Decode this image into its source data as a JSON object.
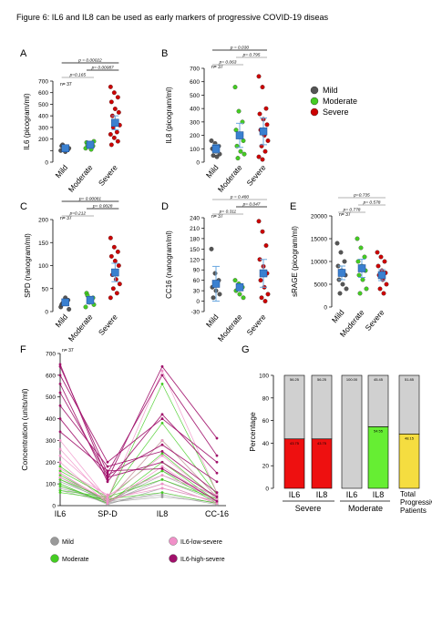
{
  "caption": "Figure 6: IL6 and IL8 can be used as early markers of progressive COVID-19 diseas",
  "colors": {
    "mild": "#555555",
    "moderate": "#44cc22",
    "severe": "#cc0000",
    "mean_marker": "#3a80d0",
    "err": "#6aa8e0",
    "sig_grey": "#999999",
    "il6_low": "#f090c8",
    "il6_high": "#a0106a",
    "bar_grey": "#d0d0d0",
    "bar_red": "#ee1010",
    "bar_green": "#66ee33",
    "bar_yellow": "#f5dd40",
    "orange_label": "#e0a020"
  },
  "legend_top": [
    {
      "label": "Mild",
      "color": "#555555"
    },
    {
      "label": "Moderate",
      "color": "#44cc22"
    },
    {
      "label": "Severe",
      "color": "#cc0000"
    }
  ],
  "panels": [
    {
      "letter": "A",
      "ylabel": "IL6 (picogram/ml)",
      "n": "n= 37",
      "ylim": [
        0,
        700
      ],
      "ticks": [
        0,
        100,
        200,
        300,
        400,
        500,
        600,
        700
      ],
      "tick_labels": [
        "0",
        "",
        "200",
        "300",
        "400",
        "500",
        "600",
        "700"
      ],
      "groups": [
        "Mild",
        "Moderate",
        "Severe"
      ],
      "means": [
        120,
        150,
        340
      ],
      "sem": [
        25,
        30,
        60
      ],
      "points": [
        [
          100,
          130,
          110,
          140,
          90,
          120,
          150,
          105
        ],
        [
          120,
          160,
          140,
          170,
          130,
          180,
          150,
          110
        ],
        [
          650,
          600,
          560,
          520,
          460,
          430,
          400,
          350,
          320,
          300,
          260,
          240,
          210,
          180,
          150
        ]
      ],
      "sig": [
        {
          "from": 0,
          "to": 2,
          "label": "p = 0.00022",
          "grey": false
        },
        {
          "from": 1,
          "to": 2,
          "label": "p= 0.00087",
          "grey": false
        },
        {
          "from": 0,
          "to": 1,
          "label": "p=0.165",
          "grey": true
        }
      ]
    },
    {
      "letter": "B",
      "ylabel": "IL8 (picogram/ml)",
      "n": "n= 37",
      "ylim": [
        0,
        700
      ],
      "ticks": [
        0,
        100,
        200,
        300,
        400,
        500,
        600,
        700
      ],
      "tick_labels": [
        "0",
        "100",
        "200",
        "300",
        "400",
        "500",
        "600",
        "700"
      ],
      "groups": [
        "Mild",
        "Moderate",
        "Severe"
      ],
      "means": [
        100,
        200,
        230
      ],
      "sem": [
        30,
        90,
        100
      ],
      "points": [
        [
          160,
          140,
          120,
          100,
          80,
          60,
          50,
          40
        ],
        [
          560,
          380,
          300,
          240,
          200,
          160,
          120,
          80,
          60,
          30
        ],
        [
          640,
          560,
          400,
          360,
          320,
          280,
          240,
          200,
          160,
          120,
          80,
          40,
          20
        ]
      ],
      "sig": [
        {
          "from": 0,
          "to": 2,
          "label": "p = 0.030",
          "grey": false
        },
        {
          "from": 1,
          "to": 2,
          "label": "p= 0.795",
          "grey": true
        },
        {
          "from": 0,
          "to": 1,
          "label": "p= 0.063",
          "grey": true
        }
      ]
    },
    {
      "letter": "C",
      "ylabel": "SPD (nanogram/ml)",
      "n": "n= 37",
      "ylim": [
        0,
        200
      ],
      "ticks": [
        0,
        50,
        100,
        150,
        200
      ],
      "tick_labels": [
        "0",
        "50",
        "100",
        "150",
        "200"
      ],
      "groups": [
        "Mild",
        "Moderate",
        "Severe"
      ],
      "means": [
        20,
        25,
        85
      ],
      "sem": [
        5,
        8,
        20
      ],
      "points": [
        [
          10,
          20,
          25,
          15,
          30,
          5,
          18
        ],
        [
          10,
          20,
          30,
          40,
          25,
          15,
          35
        ],
        [
          160,
          140,
          130,
          120,
          110,
          100,
          80,
          70,
          60,
          50,
          40,
          30
        ]
      ],
      "sig": [
        {
          "from": 0,
          "to": 2,
          "label": "p= 0.00081",
          "grey": false
        },
        {
          "from": 1,
          "to": 2,
          "label": "p= 0.0028",
          "grey": false
        },
        {
          "from": 0,
          "to": 1,
          "label": "p=0.212",
          "grey": true
        }
      ]
    },
    {
      "letter": "D",
      "ylabel": "CC16 (nanogram/ml)",
      "n": "n= 37",
      "ylim": [
        -30,
        240
      ],
      "ticks": [
        -30,
        0,
        30,
        60,
        90,
        120,
        150,
        180,
        210,
        240
      ],
      "tick_labels": [
        "-30",
        "0",
        "30",
        "60",
        "90",
        "120",
        "150",
        "180",
        "210",
        "240"
      ],
      "groups": [
        "Mild",
        "Moderate",
        "Severe"
      ],
      "means": [
        50,
        40,
        80
      ],
      "sem": [
        50,
        10,
        40
      ],
      "points": [
        [
          150,
          80,
          60,
          40,
          30,
          20,
          10
        ],
        [
          60,
          50,
          40,
          30,
          20,
          10
        ],
        [
          230,
          200,
          160,
          120,
          100,
          80,
          60,
          40,
          20,
          10,
          0
        ]
      ],
      "sig": [
        {
          "from": 0,
          "to": 2,
          "label": "p = 0.480",
          "grey": true
        },
        {
          "from": 1,
          "to": 2,
          "label": "p= 0.047",
          "grey": false
        },
        {
          "from": 0,
          "to": 1,
          "label": "p= 0.311",
          "grey": true
        }
      ]
    },
    {
      "letter": "E",
      "ylabel": "sRAGE (picogram/ml)",
      "n": "n= 37",
      "ylim": [
        0,
        20000
      ],
      "ticks": [
        0,
        5000,
        10000,
        15000,
        20000
      ],
      "tick_labels": [
        "0",
        "5000",
        "10000",
        "15000",
        "20000"
      ],
      "groups": [
        "Mild",
        "Moderate",
        "Severe"
      ],
      "means": [
        7500,
        8500,
        7000
      ],
      "sem": [
        1500,
        2000,
        1200
      ],
      "points": [
        [
          14000,
          12000,
          10000,
          9000,
          8000,
          7000,
          6000,
          5000,
          4000,
          3000
        ],
        [
          15000,
          13000,
          11000,
          10000,
          9000,
          8000,
          7000,
          6000,
          4000,
          3000
        ],
        [
          12000,
          11000,
          10000,
          9000,
          8000,
          7500,
          7000,
          6000,
          5000,
          4000,
          3000
        ]
      ],
      "sig": [
        {
          "from": 0,
          "to": 2,
          "label": "p=0.735",
          "grey": true
        },
        {
          "from": 1,
          "to": 2,
          "label": "p= 0.578",
          "grey": true
        },
        {
          "from": 0,
          "to": 1,
          "label": "p= 0.778",
          "grey": true
        }
      ]
    }
  ],
  "panel_f": {
    "letter": "F",
    "ylabel": "Concentration (units/ml)",
    "n": "n= 37",
    "ylim": [
      0,
      700
    ],
    "ticks": [
      0,
      100,
      200,
      300,
      400,
      500,
      600,
      700
    ],
    "categories": [
      "IL6",
      "SP-D",
      "IL8",
      "CC-16"
    ],
    "lines": [
      {
        "group": "high",
        "values": [
          650,
          120,
          640,
          310
        ]
      },
      {
        "group": "high",
        "values": [
          640,
          150,
          600,
          230
        ]
      },
      {
        "group": "high",
        "values": [
          600,
          200,
          400,
          200
        ]
      },
      {
        "group": "high",
        "values": [
          560,
          110,
          420,
          150
        ]
      },
      {
        "group": "high",
        "values": [
          520,
          140,
          280,
          110
        ]
      },
      {
        "group": "high",
        "values": [
          460,
          180,
          250,
          60
        ]
      },
      {
        "group": "high",
        "values": [
          400,
          130,
          200,
          40
        ]
      },
      {
        "group": "high",
        "values": [
          340,
          160,
          170,
          20
        ]
      },
      {
        "group": "low",
        "values": [
          300,
          30,
          620,
          60
        ]
      },
      {
        "group": "low",
        "values": [
          260,
          20,
          300,
          40
        ]
      },
      {
        "group": "low",
        "values": [
          230,
          40,
          230,
          30
        ]
      },
      {
        "group": "low",
        "values": [
          200,
          10,
          180,
          20
        ]
      },
      {
        "group": "low",
        "values": [
          170,
          50,
          140,
          50
        ]
      },
      {
        "group": "low",
        "values": [
          150,
          20,
          100,
          10
        ]
      },
      {
        "group": "low",
        "values": [
          130,
          30,
          80,
          20
        ]
      },
      {
        "group": "moderate",
        "values": [
          180,
          30,
          560,
          60
        ]
      },
      {
        "group": "moderate",
        "values": [
          160,
          40,
          380,
          50
        ]
      },
      {
        "group": "moderate",
        "values": [
          140,
          20,
          300,
          40
        ]
      },
      {
        "group": "moderate",
        "values": [
          120,
          30,
          240,
          30
        ]
      },
      {
        "group": "moderate",
        "values": [
          100,
          10,
          200,
          20
        ]
      },
      {
        "group": "moderate",
        "values": [
          90,
          20,
          160,
          10
        ]
      },
      {
        "group": "moderate",
        "values": [
          70,
          40,
          120,
          30
        ]
      },
      {
        "group": "moderate",
        "values": [
          60,
          30,
          60,
          10
        ]
      },
      {
        "group": "mild",
        "values": [
          150,
          10,
          160,
          40
        ]
      },
      {
        "group": "mild",
        "values": [
          130,
          20,
          140,
          30
        ]
      },
      {
        "group": "mild",
        "values": [
          120,
          15,
          120,
          20
        ]
      },
      {
        "group": "mild",
        "values": [
          110,
          25,
          100,
          10
        ]
      },
      {
        "group": "mild",
        "values": [
          100,
          5,
          80,
          20
        ]
      },
      {
        "group": "mild",
        "values": [
          90,
          10,
          60,
          10
        ]
      },
      {
        "group": "mild",
        "values": [
          80,
          20,
          50,
          5
        ]
      },
      {
        "group": "mild",
        "values": [
          70,
          15,
          40,
          15
        ]
      }
    ],
    "legend": [
      {
        "key": "mild",
        "label": "Mild",
        "color": "#999999"
      },
      {
        "key": "low",
        "label": "IL6-low-severe",
        "color": "#f090c8"
      },
      {
        "key": "moderate",
        "label": "Moderate",
        "color": "#44cc22"
      },
      {
        "key": "high",
        "label": "IL6-high-severe",
        "color": "#a0106a"
      }
    ]
  },
  "panel_g": {
    "letter": "G",
    "ylabel": "Percentage",
    "ylim": [
      0,
      100
    ],
    "ticks": [
      0,
      20,
      40,
      60,
      80,
      100
    ],
    "bars": [
      {
        "label": "IL6",
        "bottom": 43.75,
        "top": 56.25,
        "bottom_color": "#ee1010",
        "top_label": "56.25",
        "bottom_label": "43.75"
      },
      {
        "label": "IL8",
        "bottom": 43.75,
        "top": 56.25,
        "bottom_color": "#ee1010",
        "top_label": "56.25",
        "bottom_label": "43.75"
      },
      {
        "label": "IL6",
        "bottom": 0,
        "top": 100,
        "bottom_color": "#66ee33",
        "top_label": "100.00",
        "bottom_label": ""
      },
      {
        "label": "IL8",
        "bottom": 54.55,
        "top": 45.45,
        "bottom_color": "#66ee33",
        "top_label": "45.45",
        "bottom_label": "54.55"
      },
      {
        "label": "",
        "bottom": 48.15,
        "top": 51.85,
        "bottom_color": "#f5dd40",
        "top_label": "51.85",
        "bottom_label": "48.15"
      }
    ],
    "groups": [
      {
        "label": "Severe",
        "color": "#cc0000"
      },
      {
        "label": "Moderate",
        "color": "#44cc22"
      },
      {
        "label": "Total\nProgressive\nPatients",
        "color": "#e0a020"
      }
    ]
  }
}
